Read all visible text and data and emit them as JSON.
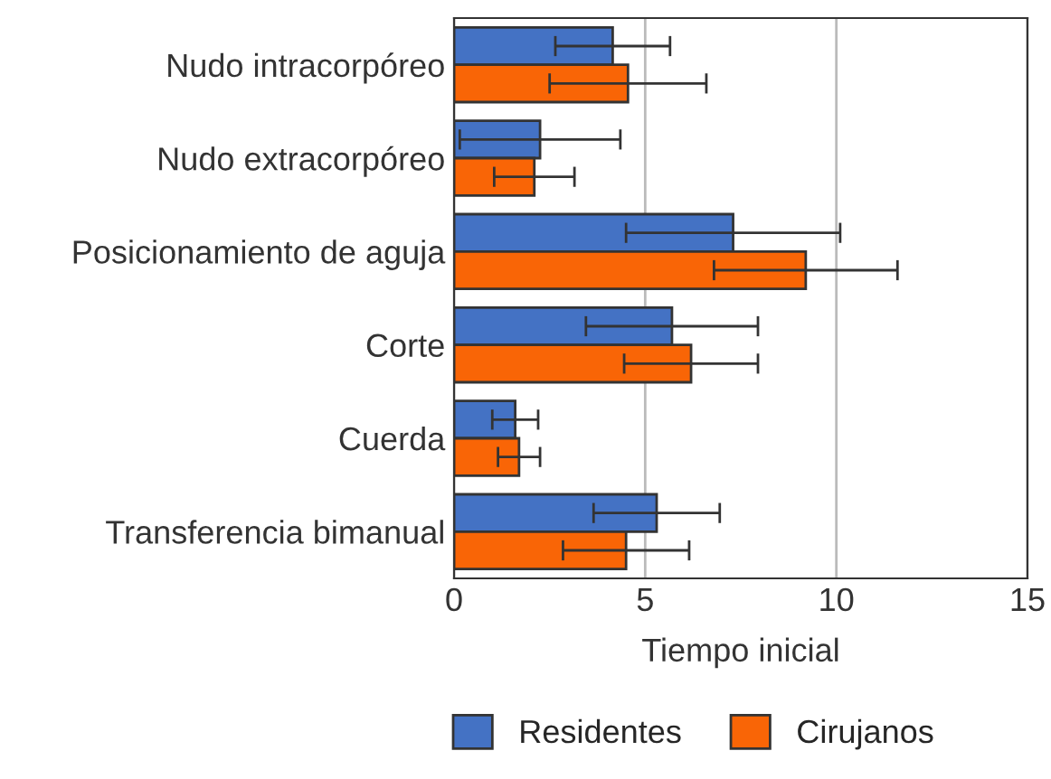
{
  "chart_data": {
    "type": "bar",
    "orientation": "horizontal",
    "xlabel": "Tiempo inicial",
    "categories": [
      "Nudo intracorpóreo",
      "Nudo extracorpóreo",
      "Posicionamiento de aguja",
      "Corte",
      "Cuerda",
      "Transferencia bimanual"
    ],
    "series": [
      {
        "name": "Residentes",
        "color": "#4472c4",
        "values": [
          4.15,
          2.25,
          7.3,
          5.7,
          1.6,
          5.3
        ],
        "errors": [
          1.5,
          2.1,
          2.8,
          2.25,
          0.6,
          1.65
        ]
      },
      {
        "name": "Cirujanos",
        "color": "#f96506",
        "values": [
          4.55,
          2.1,
          9.2,
          6.2,
          1.7,
          4.5
        ],
        "errors": [
          2.05,
          1.05,
          2.4,
          1.75,
          0.55,
          1.65
        ]
      }
    ],
    "xlim": [
      0,
      15
    ],
    "xticks": [
      0,
      5,
      10,
      15
    ],
    "grid": "x",
    "legend": "bottom"
  }
}
